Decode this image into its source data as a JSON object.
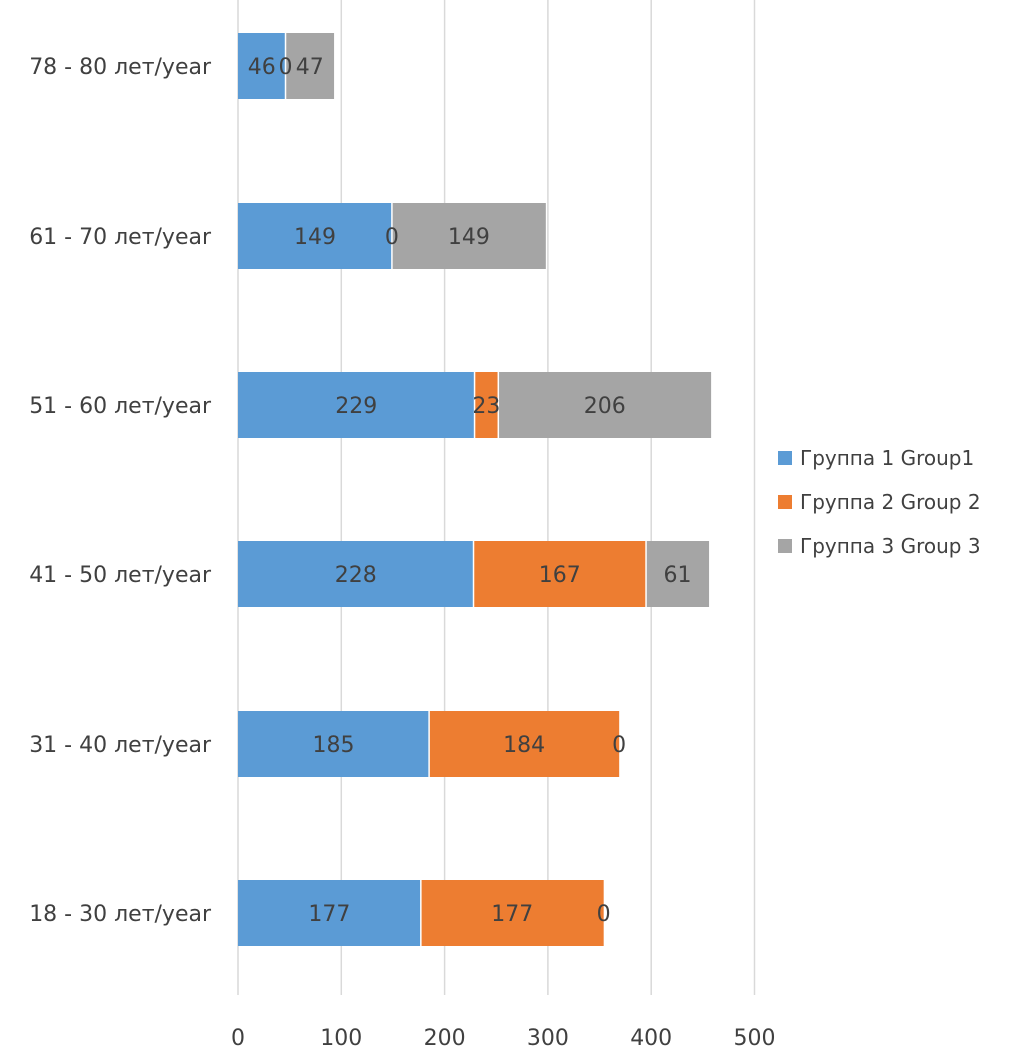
{
  "chart_data": {
    "type": "bar",
    "orientation": "horizontal",
    "stacked": true,
    "categories": [
      "78 - 80 лет/year",
      "61 - 70 лет/year",
      "51 - 60 лет/year",
      "41 - 50 лет/year",
      "31 - 40 лет/year",
      "18 - 30 лет/year"
    ],
    "series": [
      {
        "name": "Группа 1 Group1",
        "color": "#5b9bd5",
        "values": [
          46,
          149,
          229,
          228,
          185,
          177
        ]
      },
      {
        "name": "Группа 2 Group 2",
        "color": "#ed7d31",
        "values": [
          0,
          0,
          23,
          167,
          184,
          177
        ]
      },
      {
        "name": "Группа 3 Group 3",
        "color": "#a5a5a5",
        "values": [
          47,
          149,
          206,
          61,
          0,
          0
        ]
      }
    ],
    "data_labels": [
      [
        "46",
        "149",
        "229",
        "228",
        "185",
        "177"
      ],
      [
        "0",
        "0",
        "23",
        "167",
        "184",
        "177"
      ],
      [
        "47",
        "149",
        "206",
        "61",
        "0",
        "0"
      ]
    ],
    "xlim": [
      0,
      500
    ],
    "xticks": [
      "0",
      "100",
      "200",
      "300",
      "400",
      "500"
    ],
    "grid": "vertical",
    "legend_position": "right",
    "title": "",
    "xlabel": "",
    "ylabel": ""
  }
}
